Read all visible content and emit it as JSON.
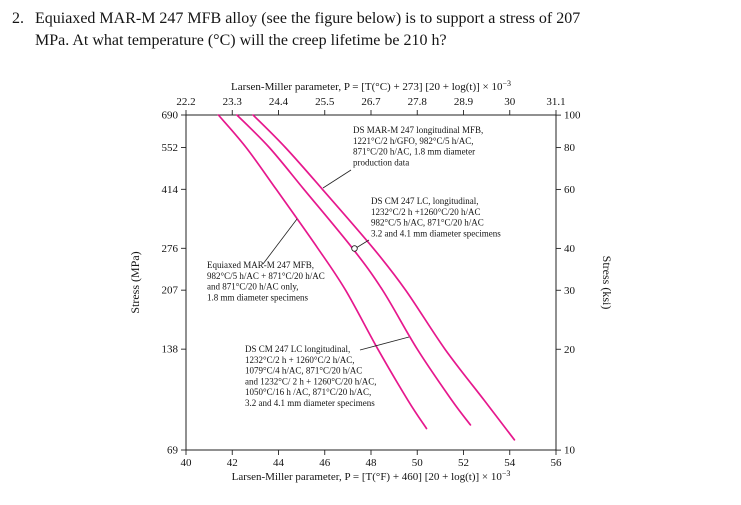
{
  "question": {
    "number": "2.",
    "lines": [
      "Equiaxed MAR-M 247 MFB alloy (see the figure below) is to support a stress of 207",
      "MPa. At what temperature (°C) will the creep lifetime be 210 h?"
    ]
  },
  "chart_data": {
    "type": "line",
    "title": "",
    "top_axis": {
      "label": "Larsen-Miller parameter, P = [T(°C) + 273] [20 + log(t)] × 10",
      "label_sup": "−3",
      "ticks": [
        "22.2",
        "23.3",
        "24.4",
        "25.5",
        "26.7",
        "27.8",
        "28.9",
        "30",
        "31.1"
      ]
    },
    "bottom_axis": {
      "label": "Larsen-Miller parameter, P = [T(°F) + 460] [20 + log(t)] × 10",
      "label_sup": "−3",
      "ticks": [
        40,
        42,
        44,
        46,
        48,
        50,
        52,
        54,
        56
      ],
      "range": [
        40,
        56
      ]
    },
    "left_axis": {
      "label": "Stress (MPa)",
      "scale": "log",
      "ticks": [
        690,
        552,
        414,
        276,
        207,
        138,
        69
      ],
      "range": [
        69,
        690
      ]
    },
    "right_axis": {
      "label": "Stress (ksi)",
      "ticks": [
        100,
        80,
        60,
        40,
        30,
        20,
        10
      ],
      "ksi_to_mpa": 6.8948
    },
    "curve_color": "#e6188d",
    "series": [
      {
        "name": "Equiaxed MAR-M 247 MFB",
        "points": [
          [
            41.4,
            690
          ],
          [
            42.6,
            552
          ],
          [
            43.9,
            414
          ],
          [
            45.7,
            276
          ],
          [
            46.9,
            207
          ],
          [
            48.3,
            138
          ],
          [
            49.6,
            97
          ],
          [
            50.4,
            80
          ]
        ]
      },
      {
        "name": "DS CM 247 LC longitudinal",
        "points": [
          [
            42.2,
            690
          ],
          [
            43.6,
            552
          ],
          [
            45.1,
            414
          ],
          [
            47.2,
            276
          ],
          [
            48.5,
            207
          ],
          [
            50.0,
            138
          ],
          [
            51.5,
            97
          ],
          [
            52.3,
            82
          ]
        ]
      },
      {
        "name": "DS MAR-M 247 longitudinal MFB production data",
        "points": [
          [
            42.9,
            690
          ],
          [
            44.3,
            552
          ],
          [
            45.9,
            414
          ],
          [
            48.1,
            276
          ],
          [
            49.5,
            207
          ],
          [
            51.2,
            138
          ],
          [
            52.9,
            97
          ],
          [
            54.2,
            74
          ]
        ]
      }
    ],
    "annotations": [
      {
        "id": "ds-marm-production",
        "lines": [
          "DS MAR-M 247 longitudinal MFB,",
          "1221°C/2 h/GFO, 982°C/5 h/AC,",
          "871°C/20 h/AC, 1.8 mm diameter",
          "production data"
        ]
      },
      {
        "id": "ds-cm-247-lc",
        "lines": [
          "DS CM 247 LC, longitudinal,",
          "1232°C/2 h +1260°C/20 h/AC",
          "982°C/5 h/AC, 871°C/20 h/AC",
          "3.2 and 4.1 mm diameter specimens"
        ]
      },
      {
        "id": "equiaxed",
        "lines": [
          "Equiaxed MAR-M 247 MFB,",
          "982°C/5 h/AC + 871°C/20 h/AC",
          "and 871°C/20 h/AC only,",
          "1.8 mm diameter specimens"
        ]
      },
      {
        "id": "ds-cm-247-lc-long",
        "lines": [
          "DS CM 247 LC longitudinal,",
          "1232°C/2 h + 1260°C/2 h/AC,",
          "1079°C/4 h/AC, 871°C/20 h/AC",
          "and 1232°C/ 2 h + 1260°C/20 h/AC,",
          "1050°C/16 h /AC, 871°C/20 h/AC,",
          "3.2 and 4.1 mm diameter specimens"
        ]
      }
    ]
  }
}
